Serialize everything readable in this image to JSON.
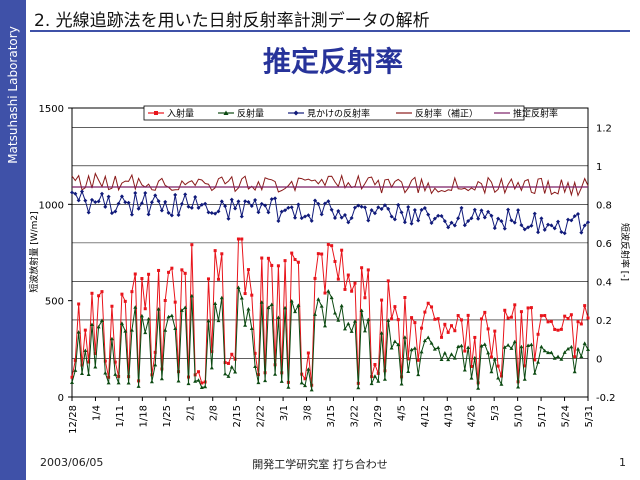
{
  "sidebar": {
    "label": "Matsuhashi Laboratory"
  },
  "header": {
    "heading": "2. 光線追跡法を用いた日射反射率計測データの解析",
    "title": "推定反射率"
  },
  "footer": {
    "date": "2003/06/05",
    "center": "開発工学研究室 打ち合わせ",
    "page": "1"
  },
  "colors": {
    "accent": "#3f51a8",
    "title": "#27339a",
    "incoming": "#e8141b",
    "reflected": "#0c4a12",
    "apparent": "#101a7a",
    "corrected": "#8a1a1a",
    "estimated": "#7a1f66"
  },
  "chart_data": {
    "type": "line",
    "y_left": {
      "label": "短波放射量 [W/m2]",
      "range": [
        0,
        1500
      ],
      "ticks": [
        "0",
        "500",
        "1000",
        "1500"
      ]
    },
    "y_right": {
      "label": "短波反射率 [-]",
      "range": [
        -0.2,
        1.3
      ],
      "ticks": [
        "-0.2",
        "0",
        "0.2",
        "0.4",
        "0.6",
        "0.8",
        "1",
        "1.2"
      ]
    },
    "x": {
      "range": [
        "12/28",
        "5/31"
      ],
      "ticks": [
        "12/28",
        "1/4",
        "1/11",
        "1/18",
        "1/25",
        "2/1",
        "2/8",
        "2/15",
        "2/22",
        "3/1",
        "3/8",
        "3/15",
        "3/22",
        "3/29",
        "4/5",
        "4/12",
        "4/19",
        "4/26",
        "5/3",
        "5/10",
        "5/17",
        "5/24",
        "5/31"
      ]
    },
    "legend_position": "top",
    "grid": "horizontal",
    "series": [
      {
        "name": "入射量",
        "axis": "left",
        "marker": "square"
      },
      {
        "name": "反射量",
        "axis": "left",
        "marker": "triangle"
      },
      {
        "name": "見かけの反射率",
        "axis": "right",
        "marker": "diamond"
      },
      {
        "name": "反射率（補正）",
        "axis": "right",
        "marker": "none"
      },
      {
        "name": "推定反射率",
        "axis": "right",
        "marker": "none",
        "constant": 0.89
      }
    ]
  }
}
